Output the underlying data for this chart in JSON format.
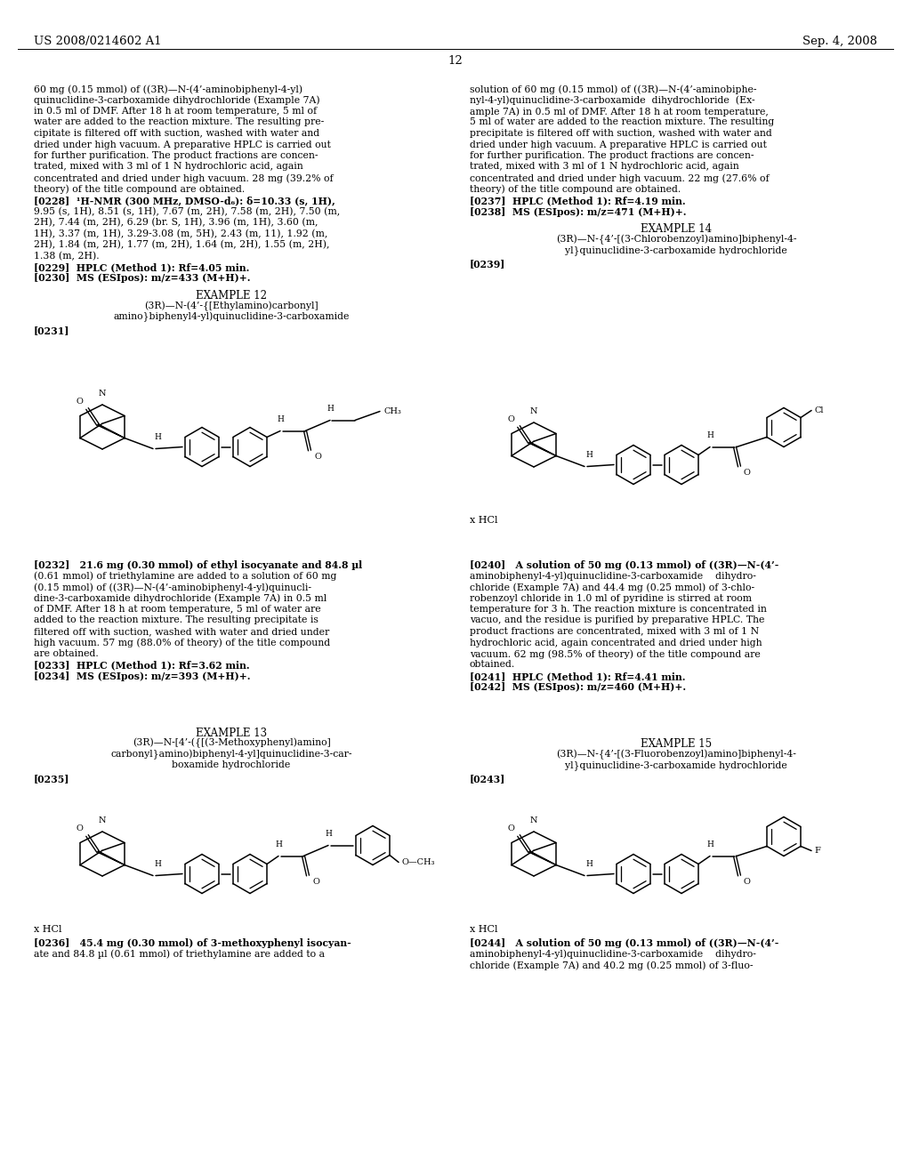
{
  "bg": "#ffffff",
  "header_left": "US 2008/0214602 A1",
  "header_right": "Sep. 4, 2008",
  "page_num": "12",
  "body_fs": 7.8,
  "small_fs": 7.0,
  "title_fs": 8.5,
  "header_fs": 9.5,
  "left_col_lines": [
    "60 mg (0.15 mmol) of ((3R)—N-(4’-aminobiphenyl-4-yl)",
    "quinuclidine-3-carboxamide dihydrochloride (Example 7A)",
    "in 0.5 ml of DMF. After 18 h at room temperature, 5 ml of",
    "water are added to the reaction mixture. The resulting pre-",
    "cipitate is filtered off with suction, washed with water and",
    "dried under high vacuum. A preparative HPLC is carried out",
    "for further purification. The product fractions are concen-",
    "trated, mixed with 3 ml of 1 N hydrochloric acid, again",
    "concentrated and dried under high vacuum. 28 mg (39.2% of",
    "theory) of the title compound are obtained."
  ],
  "left_col_nmr": [
    "[0228]  ¹H-NMR (300 MHz, DMSO-d₆): δ=10.33 (s, 1H),",
    "9.95 (s, 1H), 8.51 (s, 1H), 7.67 (m, 2H), 7.58 (m, 2H), 7.50 (m,",
    "2H), 7.44 (m, 2H), 6.29 (br. S, 1H), 3.96 (m, 1H), 3.60 (m,",
    "1H), 3.37 (m, 1H), 3.29-3.08 (m, 5H), 2.43 (m, 11), 1.92 (m,",
    "2H), 1.84 (m, 2H), 1.77 (m, 2H), 1.64 (m, 2H), 1.55 (m, 2H),",
    "1.38 (m, 2H).",
    "[0229]  HPLC (Method 1): Rf=4.05 min.",
    "[0230]  MS (ESIpos): m/z=433 (M+H)+."
  ],
  "right_col_lines": [
    "solution of 60 mg (0.15 mmol) of ((3R)—N-(4’-aminobiphe-",
    "nyl-4-yl)quinuclidine-3-carboxamide  dihydrochloride  (Ex-",
    "ample 7A) in 0.5 ml of DMF. After 18 h at room temperature,",
    "5 ml of water are added to the reaction mixture. The resulting",
    "precipitate is filtered off with suction, washed with water and",
    "dried under high vacuum. A preparative HPLC is carried out",
    "for further purification. The product fractions are concen-",
    "trated, mixed with 3 ml of 1 N hydrochloric acid, again",
    "concentrated and dried under high vacuum. 22 mg (27.6% of",
    "theory) of the title compound are obtained.",
    "[0237]  HPLC (Method 1): Rf=4.19 min.",
    "[0238]  MS (ESIpos): m/z=471 (M+H)+."
  ],
  "ex14_header": "EXAMPLE 14",
  "ex14_title1": "(3R)—N-{4’-[(3-Chlorobenzoyl)amino]biphenyl-4-",
  "ex14_title2": "yl}quinuclidine-3-carboxamide hydrochloride",
  "ex14_ref": "[0239]",
  "ex12_header": "EXAMPLE 12",
  "ex12_title1": "(3R)—N-(4’-{[Ethylamino)carbonyl]",
  "ex12_title2": "amino}biphenyl4-yl)quinuclidine-3-carboxamide",
  "ex12_ref": "[0231]",
  "ex12_para": [
    "[0232]   21.6 mg (0.30 mmol) of ethyl isocyanate and 84.8 µl",
    "(0.61 mmol) of triethylamine are added to a solution of 60 mg",
    "(0.15 mmol) of ((3R)—N-(4’-aminobiphenyl-4-yl)quinucli-",
    "dine-3-carboxamide dihydrochloride (Example 7A) in 0.5 ml",
    "of DMF. After 18 h at room temperature, 5 ml of water are",
    "added to the reaction mixture. The resulting precipitate is",
    "filtered off with suction, washed with water and dried under",
    "high vacuum. 57 mg (88.0% of theory) of the title compound",
    "are obtained.",
    "[0233]  HPLC (Method 1): Rf=3.62 min.",
    "[0234]  MS (ESIpos): m/z=393 (M+H)+."
  ],
  "ex14_para": [
    "[0240]   A solution of 50 mg (0.13 mmol) of ((3R)—N-(4’-",
    "aminobiphenyl-4-yl)quinuclidine-3-carboxamide    dihydro-",
    "chloride (Example 7A) and 44.4 mg (0.25 mmol) of 3-chlo-",
    "robenzoyl chloride in 1.0 ml of pyridine is stirred at room",
    "temperature for 3 h. The reaction mixture is concentrated in",
    "vacuo, and the residue is purified by preparative HPLC. The",
    "product fractions are concentrated, mixed with 3 ml of 1 N",
    "hydrochloric acid, again concentrated and dried under high",
    "vacuum. 62 mg (98.5% of theory) of the title compound are",
    "obtained.",
    "[0241]  HPLC (Method 1): Rf=4.41 min.",
    "[0242]  MS (ESIpos): m/z=460 (M+H)+."
  ],
  "ex13_header": "EXAMPLE 13",
  "ex13_title1": "(3R)—N-[4’-({[(3-Methoxyphenyl)amino]",
  "ex13_title2": "carbonyl}amino)biphenyl-4-yl]quinuclidine-3-car-",
  "ex13_title3": "boxamide hydrochloride",
  "ex13_ref": "[0235]",
  "ex13_para": [
    "[0236]   45.4 mg (0.30 mmol) of 3-methoxyphenyl isocyan-",
    "ate and 84.8 µl (0.61 mmol) of triethylamine are added to a"
  ],
  "ex15_header": "EXAMPLE 15",
  "ex15_title1": "(3R)—N-{4’-[(3-Fluorobenzoyl)amino]biphenyl-4-",
  "ex15_title2": "yl}quinuclidine-3-carboxamide hydrochloride",
  "ex15_ref": "[0243]",
  "ex15_para": [
    "[0244]   A solution of 50 mg (0.13 mmol) of ((3R)—N-(4’-",
    "aminobiphenyl-4-yl)quinuclidine-3-carboxamide    dihydro-",
    "chloride (Example 7A) and 40.2 mg (0.25 mmol) of 3-fluo-"
  ]
}
